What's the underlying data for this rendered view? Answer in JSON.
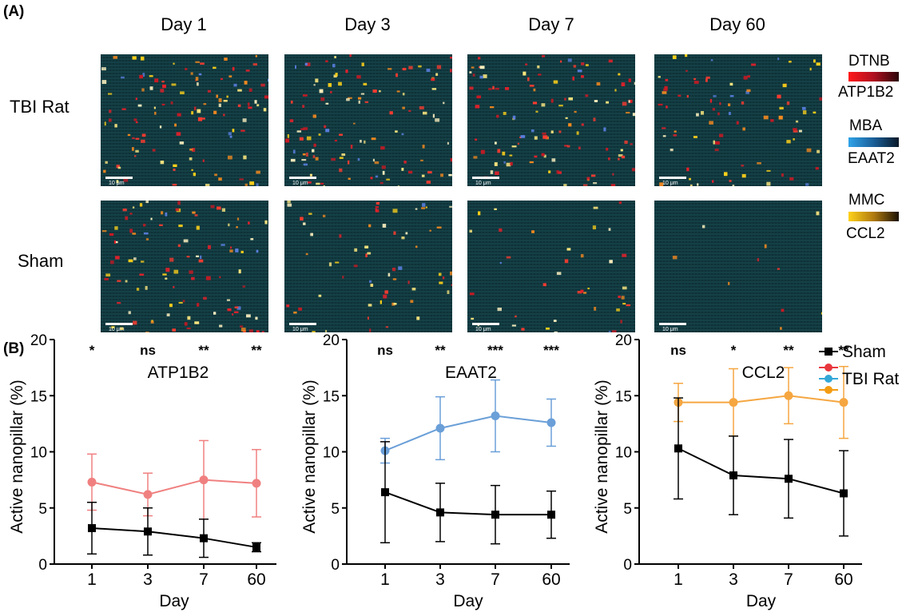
{
  "figure": {
    "panel_a": "(A)",
    "panel_b": "(B)",
    "days": [
      "Day 1",
      "Day 3",
      "Day 7",
      "Day 60"
    ],
    "rows": [
      "TBI Rat",
      "Sham"
    ],
    "scale_bar": "10 μm",
    "color_legend": [
      {
        "top": "DTNB",
        "bottom": "ATP1B2",
        "color": "#e8202a"
      },
      {
        "top": "MBA",
        "bottom": "EAAT2",
        "color": "#1f8fd6"
      },
      {
        "top": "MMC",
        "bottom": "CCL2",
        "color": "#f5c518"
      }
    ],
    "micro_density": [
      [
        1.0,
        1.0,
        1.0,
        0.75
      ],
      [
        0.9,
        0.55,
        0.35,
        0.08
      ]
    ]
  },
  "series_legend": [
    {
      "label": "Sham",
      "color": "#000000",
      "marker": "square"
    },
    {
      "label": "TBI Rat",
      "colors": [
        "#e8383d",
        "#33a8d8",
        "#f39c12"
      ],
      "marker": "circle"
    }
  ],
  "chart_data": [
    {
      "type": "line",
      "title": "ATP1B2",
      "xlabel": "Day",
      "ylabel": "Active nanopillar (%)",
      "categories": [
        "1",
        "3",
        "7",
        "60"
      ],
      "ylim": [
        0,
        20
      ],
      "yticks": [
        0,
        5,
        10,
        15,
        20
      ],
      "significance": [
        "*",
        "ns",
        "**",
        "**"
      ],
      "series": [
        {
          "name": "TBI Rat",
          "color": "#f08080",
          "values": [
            7.3,
            6.2,
            7.5,
            7.2
          ],
          "err": [
            2.5,
            1.9,
            3.5,
            3.0
          ]
        },
        {
          "name": "Sham",
          "color": "#000000",
          "values": [
            3.2,
            2.9,
            2.3,
            1.5
          ],
          "err": [
            2.3,
            2.1,
            1.7,
            0.4
          ]
        }
      ]
    },
    {
      "type": "line",
      "title": "EAAT2",
      "xlabel": "Day",
      "ylabel": "Active nanopillar (%)",
      "categories": [
        "1",
        "3",
        "7",
        "60"
      ],
      "ylim": [
        0,
        20
      ],
      "yticks": [
        0,
        5,
        10,
        15,
        20
      ],
      "significance": [
        "ns",
        "**",
        "***",
        "***"
      ],
      "series": [
        {
          "name": "TBI Rat",
          "color": "#6a9fd8",
          "values": [
            10.1,
            12.1,
            13.2,
            12.6
          ],
          "err": [
            1.1,
            2.8,
            3.2,
            2.1
          ]
        },
        {
          "name": "Sham",
          "color": "#000000",
          "values": [
            6.4,
            4.6,
            4.4,
            4.4
          ],
          "err": [
            4.5,
            2.6,
            2.6,
            2.1
          ]
        }
      ]
    },
    {
      "type": "line",
      "title": "CCL2",
      "xlabel": "Day",
      "ylabel": "Active nanopillar (%)",
      "categories": [
        "1",
        "3",
        "7",
        "60"
      ],
      "ylim": [
        0,
        20
      ],
      "yticks": [
        0,
        5,
        10,
        15,
        20
      ],
      "significance": [
        "ns",
        "*",
        "**",
        "**"
      ],
      "series": [
        {
          "name": "TBI Rat",
          "color": "#f5a640",
          "values": [
            14.4,
            14.4,
            15.0,
            14.4
          ],
          "err": [
            1.7,
            3.0,
            2.5,
            3.2
          ]
        },
        {
          "name": "Sham",
          "color": "#000000",
          "values": [
            10.3,
            7.9,
            7.6,
            6.3
          ],
          "err": [
            4.5,
            3.5,
            3.5,
            3.8
          ]
        }
      ]
    }
  ]
}
